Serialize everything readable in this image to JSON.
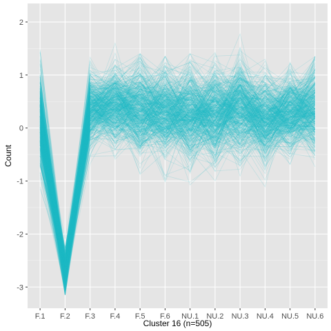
{
  "chart_data": {
    "type": "line",
    "title": "",
    "xlabel": "Cluster 16 (n=505)",
    "ylabel": "Count",
    "categories": [
      "F.1",
      "F.2",
      "F.3",
      "F.4",
      "F.5",
      "F.6",
      "NU.1",
      "NU.2",
      "NU.3",
      "NU.4",
      "NU.5",
      "NU.6"
    ],
    "yticks": [
      2,
      1,
      0,
      -1,
      -2,
      -3
    ],
    "ylim": [
      -3.4,
      2.35
    ],
    "line_count": 505,
    "color": "#22BCC8",
    "panel_background": "#E5E5E5",
    "grid": true,
    "legend": "none",
    "profile_mean": [
      0.1,
      -2.7,
      0.35,
      0.45,
      0.35,
      0.3,
      0.3,
      0.25,
      0.4,
      0.2,
      0.3,
      0.35
    ],
    "profile_spread": [
      0.45,
      0.16,
      0.3,
      0.35,
      0.38,
      0.38,
      0.4,
      0.42,
      0.42,
      0.38,
      0.35,
      0.4
    ],
    "profile_min": [
      -1.4,
      -3.15,
      -1.0,
      -0.8,
      -1.25,
      -1.5,
      -1.45,
      -1.55,
      -1.3,
      -1.4,
      -1.1,
      -1.3
    ],
    "profile_max": [
      1.65,
      -1.8,
      1.8,
      1.6,
      1.4,
      1.35,
      1.4,
      2.1,
      1.8,
      1.7,
      1.3,
      1.35
    ]
  }
}
